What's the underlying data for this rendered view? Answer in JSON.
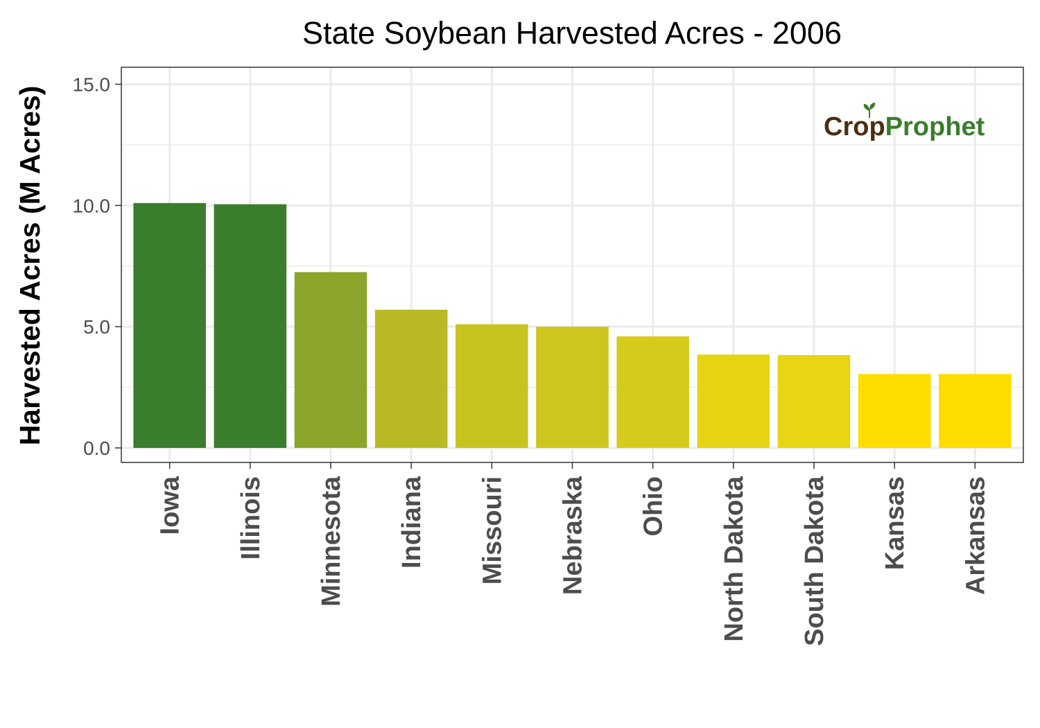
{
  "chart_data": {
    "type": "bar",
    "title": "State Soybean Harvested Acres - 2006",
    "xlabel": "",
    "ylabel": "Harvested Acres (M Acres)",
    "ylim": [
      -0.6,
      15.7
    ],
    "yticks": [
      0,
      5,
      10,
      15
    ],
    "ytick_labels": [
      "0.0",
      "5.0",
      "10.0",
      "15.0"
    ],
    "grid": true,
    "categories": [
      "Iowa",
      "Illinois",
      "Minnesota",
      "Indiana",
      "Missouri",
      "Nebraska",
      "Ohio",
      "North Dakota",
      "South Dakota",
      "Kansas",
      "Arkansas"
    ],
    "values": [
      10.1,
      10.05,
      7.25,
      5.7,
      5.1,
      5.0,
      4.6,
      3.85,
      3.83,
      3.05,
      3.05
    ],
    "colors": [
      "#3a7d2c",
      "#3a7d2c",
      "#8ba42a",
      "#b8b925",
      "#c7c41f",
      "#cdc61e",
      "#d6cb1b",
      "#e6d414",
      "#e8d513",
      "#ffdd00",
      "#ffdd00"
    ]
  },
  "logo": {
    "part1": "Cr",
    "part2": "p",
    "part3": "Prophet",
    "color_dark": "#4a2e0f",
    "color_green": "#3a7d2c"
  }
}
